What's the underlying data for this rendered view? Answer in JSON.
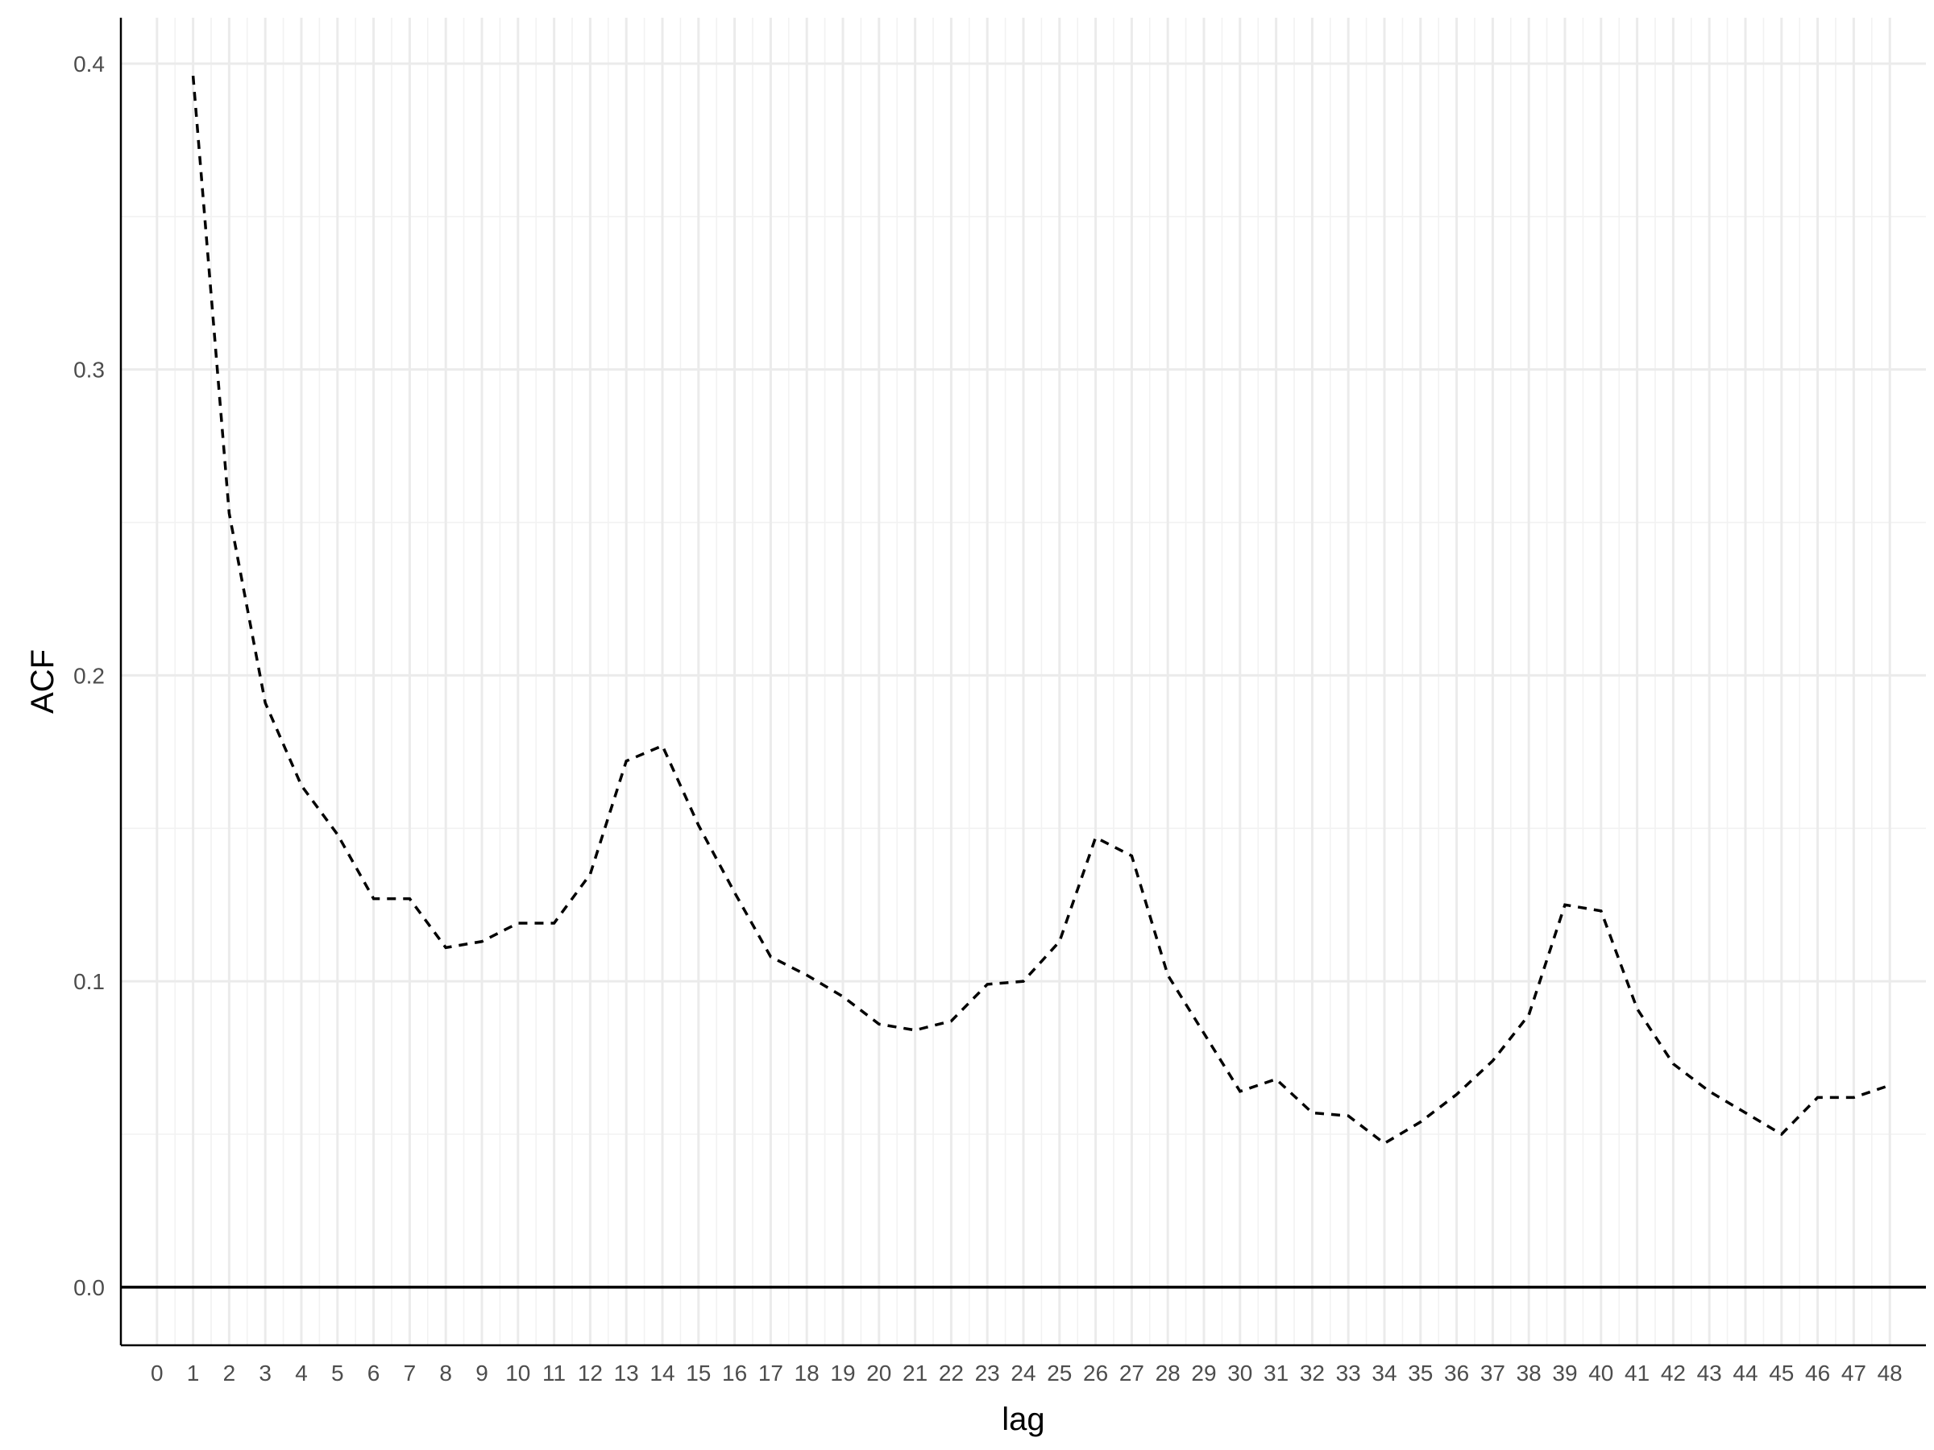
{
  "chart_data": {
    "type": "line",
    "title": "",
    "xlabel": "lag",
    "ylabel": "ACF",
    "xlim": [
      -1.0,
      49.0
    ],
    "ylim": [
      -0.019,
      0.415
    ],
    "x_ticks": [
      0,
      1,
      2,
      3,
      4,
      5,
      6,
      7,
      8,
      9,
      10,
      11,
      12,
      13,
      14,
      15,
      16,
      17,
      18,
      19,
      20,
      21,
      22,
      23,
      24,
      25,
      26,
      27,
      28,
      29,
      30,
      31,
      32,
      33,
      34,
      35,
      36,
      37,
      38,
      39,
      40,
      41,
      42,
      43,
      44,
      45,
      46,
      47,
      48
    ],
    "y_ticks": [
      0.0,
      0.1,
      0.2,
      0.3,
      0.4
    ],
    "y_tick_labels": [
      "0.0",
      "0.1",
      "0.2",
      "0.3",
      "0.4"
    ],
    "grid": true,
    "reference_line": {
      "y": 0.0
    },
    "series": [
      {
        "line_style": "dashed",
        "color": "#000000",
        "x": [
          1,
          2,
          3,
          4,
          5,
          6,
          7,
          8,
          9,
          10,
          11,
          12,
          13,
          14,
          15,
          16,
          17,
          18,
          19,
          20,
          21,
          22,
          23,
          24,
          25,
          26,
          27,
          28,
          29,
          30,
          31,
          32,
          33,
          34,
          35,
          36,
          37,
          38,
          39,
          40,
          41,
          42,
          43,
          44,
          45,
          46,
          47,
          48
        ],
        "values": [
          0.396,
          0.253,
          0.191,
          0.164,
          0.148,
          0.127,
          0.127,
          0.111,
          0.113,
          0.119,
          0.119,
          0.135,
          0.172,
          0.177,
          0.151,
          0.129,
          0.108,
          0.102,
          0.095,
          0.086,
          0.084,
          0.087,
          0.099,
          0.1,
          0.113,
          0.147,
          0.141,
          0.102,
          0.083,
          0.064,
          0.068,
          0.057,
          0.056,
          0.047,
          0.054,
          0.063,
          0.074,
          0.089,
          0.125,
          0.123,
          0.091,
          0.073,
          0.064,
          0.057,
          0.05,
          0.062,
          0.062,
          0.066
        ]
      }
    ]
  }
}
